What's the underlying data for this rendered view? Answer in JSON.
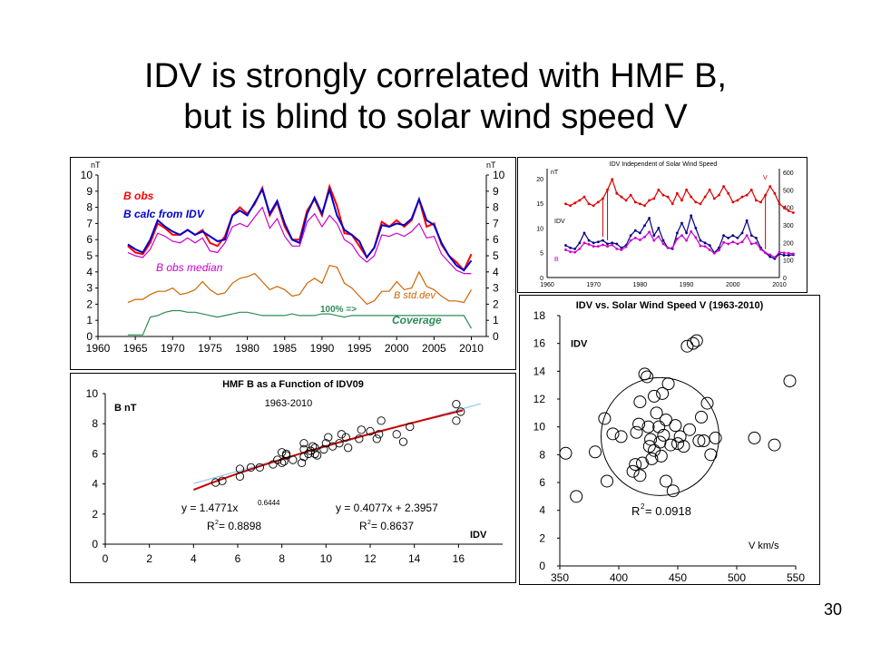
{
  "slide": {
    "title_line1": "IDV is strongly correlated with HMF B,",
    "title_line2": "but is blind to solar wind speed V",
    "page_number": "30"
  },
  "chart_data": [
    {
      "id": "b-timeseries",
      "type": "line",
      "y_unit": "nT",
      "xlim": [
        1960,
        2012
      ],
      "ylim": [
        0,
        10
      ],
      "x_ticks": [
        1960,
        1965,
        1970,
        1975,
        1980,
        1985,
        1990,
        1995,
        2000,
        2005,
        2010
      ],
      "y_ticks": [
        0,
        1,
        2,
        3,
        4,
        5,
        6,
        7,
        8,
        9,
        10
      ],
      "grid": false,
      "x": [
        1964,
        1965,
        1966,
        1967,
        1968,
        1969,
        1970,
        1971,
        1972,
        1973,
        1974,
        1975,
        1976,
        1977,
        1978,
        1979,
        1980,
        1981,
        1982,
        1983,
        1984,
        1985,
        1986,
        1987,
        1988,
        1989,
        1990,
        1991,
        1992,
        1993,
        1994,
        1995,
        1996,
        1997,
        1998,
        1999,
        2000,
        2001,
        2002,
        2003,
        2004,
        2005,
        2006,
        2007,
        2008,
        2009,
        2010
      ],
      "series": [
        {
          "name": "B obs",
          "color": "#ff0000",
          "values": [
            5.6,
            5.2,
            5.1,
            5.8,
            7.0,
            6.7,
            6.3,
            6.3,
            6.6,
            6.3,
            6.6,
            5.8,
            5.6,
            6.2,
            7.5,
            8.0,
            7.6,
            8.2,
            9.2,
            7.5,
            8.3,
            6.8,
            6.0,
            6.0,
            7.8,
            8.5,
            7.5,
            9.3,
            8.1,
            6.4,
            6.3,
            5.6,
            4.9,
            5.5,
            7.1,
            6.8,
            7.2,
            6.8,
            7.2,
            8.5,
            6.8,
            7.0,
            5.7,
            5.0,
            4.6,
            4.1,
            5.1
          ]
        },
        {
          "name": "B calc from IDV",
          "color": "#0000cc",
          "values": [
            5.7,
            5.4,
            5.2,
            6.0,
            7.2,
            6.8,
            6.5,
            6.3,
            6.6,
            6.3,
            6.5,
            6.2,
            5.9,
            6.0,
            7.5,
            7.8,
            7.5,
            8.3,
            9.1,
            7.6,
            8.4,
            7.0,
            6.0,
            5.8,
            7.6,
            8.6,
            7.6,
            9.1,
            7.5,
            6.6,
            6.3,
            5.9,
            4.9,
            5.5,
            6.9,
            6.8,
            7.0,
            6.9,
            7.3,
            8.5,
            7.2,
            6.9,
            5.8,
            5.0,
            4.4,
            4.1,
            4.7
          ]
        },
        {
          "name": "B obs median",
          "color": "#cc00cc",
          "values": [
            5.2,
            5.0,
            4.9,
            5.4,
            6.4,
            6.2,
            5.9,
            5.8,
            6.1,
            5.8,
            6.1,
            5.3,
            5.2,
            5.8,
            6.8,
            7.0,
            6.8,
            7.4,
            8.0,
            6.7,
            7.3,
            6.2,
            5.6,
            5.6,
            7.1,
            7.6,
            6.8,
            7.5,
            7.0,
            6.0,
            5.7,
            5.0,
            4.6,
            5.0,
            6.3,
            6.2,
            6.4,
            6.2,
            6.5,
            7.0,
            6.1,
            6.2,
            5.1,
            4.6,
            4.1,
            3.9,
            3.9
          ]
        },
        {
          "name": "B std.dev",
          "color": "#cc6600",
          "values": [
            2.1,
            2.3,
            2.3,
            2.6,
            2.8,
            2.8,
            3.0,
            2.6,
            2.7,
            2.9,
            3.4,
            2.9,
            2.6,
            2.7,
            3.3,
            3.6,
            3.7,
            3.9,
            3.4,
            2.9,
            3.1,
            2.9,
            2.5,
            2.6,
            3.3,
            3.6,
            3.3,
            4.4,
            4.3,
            3.3,
            3.0,
            2.5,
            2.0,
            2.2,
            2.8,
            2.8,
            3.4,
            2.9,
            3.0,
            4.0,
            3.1,
            2.9,
            2.5,
            2.2,
            2.2,
            2.1,
            2.9
          ]
        },
        {
          "name": "Coverage",
          "color": "#2e8b57",
          "values": [
            0.1,
            0.1,
            0.1,
            1.2,
            1.3,
            1.5,
            1.6,
            1.6,
            1.5,
            1.5,
            1.4,
            1.3,
            1.2,
            1.3,
            1.4,
            1.5,
            1.5,
            1.4,
            1.3,
            1.3,
            1.3,
            1.3,
            1.4,
            1.3,
            1.3,
            1.3,
            1.4,
            1.4,
            1.3,
            1.2,
            1.3,
            1.3,
            1.3,
            1.3,
            1.3,
            1.3,
            1.3,
            1.3,
            1.3,
            1.3,
            1.3,
            1.3,
            1.3,
            1.3,
            1.3,
            1.3,
            0.5
          ]
        }
      ],
      "annotations": {
        "coverage_marker": "100% =>"
      }
    },
    {
      "id": "idv-independent",
      "type": "line",
      "title": "IDV Independent of Solar Wind Speed",
      "left_axis_label": "nT",
      "right_axis_label": "V",
      "xlim": [
        1960,
        2010
      ],
      "x_ticks": [
        1960,
        1970,
        1980,
        1990,
        2000,
        2010
      ],
      "left_ticks": [
        0,
        5,
        10,
        15,
        20
      ],
      "right_ticks": [
        0,
        100,
        200,
        300,
        400,
        500,
        600
      ],
      "series_labels": [
        "IDV",
        "B",
        "V"
      ],
      "series": [
        {
          "name": "V",
          "color": "#dd0000",
          "values": [
            420,
            410,
            425,
            440,
            460,
            420,
            410,
            430,
            450,
            500,
            560,
            480,
            460,
            440,
            470,
            430,
            420,
            410,
            440,
            450,
            500,
            470,
            460,
            420,
            480,
            440,
            500,
            460,
            430,
            420,
            460,
            500,
            450,
            470,
            520,
            480,
            430,
            440,
            460,
            470,
            500,
            440,
            430,
            470,
            520,
            480,
            420,
            400,
            380,
            370
          ]
        },
        {
          "name": "IDV",
          "color": "#000080",
          "values": [
            6.5,
            6.0,
            5.8,
            7.0,
            9.0,
            7.5,
            7.0,
            7.2,
            7.5,
            6.8,
            7.0,
            6.8,
            6.0,
            6.5,
            8.5,
            9.5,
            9.0,
            10.5,
            12.0,
            8.5,
            10.0,
            7.5,
            6.0,
            5.8,
            9.0,
            11.0,
            9.0,
            12.5,
            10.0,
            7.5,
            7.0,
            6.5,
            5.0,
            6.0,
            8.5,
            8.0,
            8.5,
            8.0,
            9.0,
            11.5,
            8.5,
            8.0,
            6.0,
            5.0,
            4.2,
            3.8,
            4.8,
            4.5,
            4.5,
            4.6
          ]
        },
        {
          "name": "B",
          "color": "#cc00cc",
          "values": [
            5.6,
            5.2,
            5.1,
            5.8,
            7.0,
            6.7,
            6.3,
            6.3,
            6.6,
            6.3,
            6.6,
            5.8,
            5.6,
            6.2,
            7.5,
            8.0,
            7.6,
            8.2,
            9.2,
            7.5,
            8.3,
            6.8,
            6.0,
            6.0,
            7.8,
            8.5,
            7.5,
            9.3,
            8.1,
            6.4,
            6.3,
            5.6,
            4.9,
            5.5,
            7.1,
            6.8,
            7.2,
            6.8,
            7.2,
            8.5,
            6.8,
            7.0,
            5.7,
            5.0,
            4.6,
            4.1,
            5.1,
            5.0,
            4.9,
            4.8
          ]
        }
      ]
    },
    {
      "id": "hmf-vs-idv",
      "type": "scatter",
      "title": "HMF B as a Function of IDV09",
      "subtitle": "1963-2010",
      "xlabel": "IDV",
      "ylabel": "B nT",
      "xlim": [
        0,
        18
      ],
      "ylim": [
        0,
        10
      ],
      "x_ticks": [
        0,
        2,
        4,
        6,
        8,
        10,
        12,
        14,
        16
      ],
      "y_ticks": [
        0,
        2,
        4,
        6,
        8,
        10
      ],
      "grid": false,
      "points": [
        [
          5.0,
          4.1
        ],
        [
          5.3,
          4.2
        ],
        [
          6.1,
          4.5
        ],
        [
          6.1,
          5.0
        ],
        [
          6.6,
          5.1
        ],
        [
          7.0,
          5.1
        ],
        [
          7.6,
          5.3
        ],
        [
          8.0,
          5.4
        ],
        [
          8.1,
          5.5
        ],
        [
          7.8,
          5.6
        ],
        [
          8.2,
          5.9
        ],
        [
          8.2,
          6.0
        ],
        [
          8.0,
          6.1
        ],
        [
          8.5,
          5.6
        ],
        [
          8.9,
          5.4
        ],
        [
          9.0,
          5.8
        ],
        [
          9.2,
          6.0
        ],
        [
          9.3,
          6.2
        ],
        [
          9.0,
          6.3
        ],
        [
          9.4,
          6.5
        ],
        [
          9.0,
          6.7
        ],
        [
          9.5,
          6.0
        ],
        [
          9.6,
          5.9
        ],
        [
          9.5,
          6.4
        ],
        [
          9.9,
          6.3
        ],
        [
          10.0,
          6.7
        ],
        [
          10.1,
          7.1
        ],
        [
          10.3,
          6.5
        ],
        [
          10.6,
          6.7
        ],
        [
          10.7,
          7.3
        ],
        [
          10.9,
          7.1
        ],
        [
          11.0,
          6.4
        ],
        [
          11.5,
          7.0
        ],
        [
          11.6,
          7.6
        ],
        [
          12.0,
          7.5
        ],
        [
          12.3,
          7.0
        ],
        [
          12.4,
          7.3
        ],
        [
          12.5,
          8.2
        ],
        [
          13.2,
          7.3
        ],
        [
          13.5,
          6.8
        ],
        [
          13.8,
          7.8
        ],
        [
          15.9,
          8.2
        ],
        [
          16.1,
          8.8
        ],
        [
          15.9,
          9.3
        ]
      ],
      "fits": [
        {
          "label": "y = 1.4771x",
          "exponent": "0.6444",
          "r2_label": "R",
          "r2_value": " = 0.8898",
          "type": "power",
          "a": 1.4771,
          "b": 0.6444
        },
        {
          "label": "y = 0.4077x + 2.3957",
          "r2_label": "R",
          "r2_value": " = 0.8637",
          "type": "linear",
          "a": 0.4077,
          "b": 2.3957
        }
      ]
    },
    {
      "id": "idv-vs-v",
      "type": "scatter",
      "title": "IDV vs. Solar Wind Speed V (1963-2010)",
      "xlabel": "V km/s",
      "ylabel": "IDV",
      "xlim": [
        350,
        550
      ],
      "ylim": [
        0,
        18
      ],
      "x_ticks": [
        350,
        400,
        450,
        500,
        550
      ],
      "y_ticks": [
        0,
        2,
        4,
        6,
        8,
        10,
        12,
        14,
        16,
        18
      ],
      "grid": false,
      "r2_label": "R",
      "r2_value": " = 0.0918",
      "cluster_circle": {
        "cx": 435,
        "cy": 9.3,
        "r_v": 50
      },
      "points": [
        [
          355,
          8.1
        ],
        [
          364,
          5.0
        ],
        [
          380,
          8.2
        ],
        [
          388,
          10.6
        ],
        [
          390,
          6.1
        ],
        [
          395,
          9.5
        ],
        [
          402,
          9.3
        ],
        [
          412,
          6.8
        ],
        [
          414,
          7.3
        ],
        [
          415,
          9.6
        ],
        [
          417,
          10.2
        ],
        [
          418,
          11.8
        ],
        [
          418,
          6.5
        ],
        [
          420,
          7.4
        ],
        [
          422,
          13.8
        ],
        [
          424,
          13.6
        ],
        [
          425,
          10.0
        ],
        [
          426,
          8.6
        ],
        [
          427,
          9.1
        ],
        [
          428,
          7.7
        ],
        [
          430,
          8.3
        ],
        [
          430,
          12.2
        ],
        [
          432,
          11.0
        ],
        [
          434,
          10.0
        ],
        [
          435,
          8.9
        ],
        [
          436,
          7.9
        ],
        [
          437,
          12.4
        ],
        [
          438,
          9.4
        ],
        [
          440,
          10.5
        ],
        [
          440,
          6.1
        ],
        [
          442,
          13.1
        ],
        [
          444,
          8.7
        ],
        [
          446,
          5.4
        ],
        [
          448,
          10.1
        ],
        [
          450,
          8.8
        ],
        [
          452,
          9.3
        ],
        [
          455,
          8.6
        ],
        [
          458,
          15.8
        ],
        [
          460,
          9.8
        ],
        [
          463,
          16.0
        ],
        [
          466,
          16.2
        ],
        [
          468,
          9.0
        ],
        [
          470,
          10.7
        ],
        [
          472,
          9.0
        ],
        [
          475,
          11.7
        ],
        [
          478,
          8.0
        ],
        [
          482,
          9.2
        ],
        [
          515,
          9.2
        ],
        [
          532,
          8.7
        ],
        [
          545,
          13.3
        ]
      ]
    }
  ]
}
